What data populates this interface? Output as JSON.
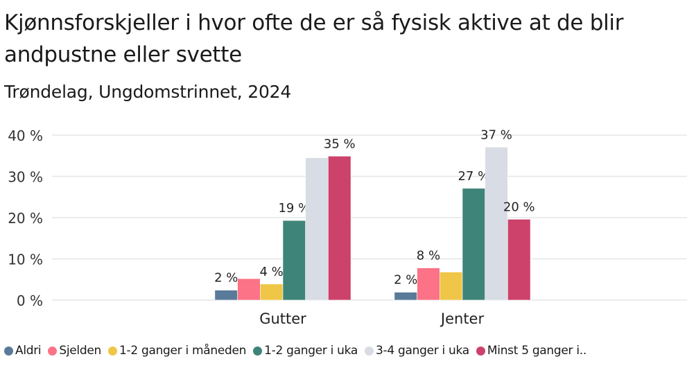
{
  "chart_data": {
    "type": "bar",
    "title": "Kjønnsforskjeller i hvor ofte de er så fysisk aktive at de blir andpustne eller svette",
    "subtitle": "Trøndelag, Ungdomstrinnet, 2024",
    "categories": [
      "Gutter",
      "Jenter"
    ],
    "ylim": [
      0,
      40
    ],
    "yticks": [
      0,
      10,
      20,
      30,
      40
    ],
    "ytick_labels": [
      "0 %",
      "10 %",
      "20 %",
      "30 %",
      "40 %"
    ],
    "grid": true,
    "legend_position": "bottom",
    "series": [
      {
        "name": "Aldri",
        "color": "#5a7a9a",
        "values": [
          2.4,
          1.9
        ],
        "labels": [
          "2 %",
          "2 %"
        ]
      },
      {
        "name": "Sjelden",
        "color": "#fc7286",
        "values": [
          5.2,
          7.8
        ],
        "labels": [
          "",
          "8 %"
        ]
      },
      {
        "name": "1-2 ganger i måneden",
        "color": "#f0c648",
        "values": [
          3.9,
          6.8
        ],
        "labels": [
          "4 %",
          ""
        ]
      },
      {
        "name": "1-2 ganger i uka",
        "color": "#3e8478",
        "values": [
          19.3,
          27.1
        ],
        "labels": [
          "19 %",
          "27 %"
        ]
      },
      {
        "name": "3-4 ganger i uka",
        "color": "#d8dce4",
        "values": [
          34.5,
          37.1
        ],
        "labels": [
          "",
          "37 %"
        ]
      },
      {
        "name": "Minst 5 ganger i..",
        "color": "#cc426a",
        "values": [
          34.9,
          19.6
        ],
        "labels": [
          "35 %",
          "20 %"
        ]
      }
    ]
  }
}
